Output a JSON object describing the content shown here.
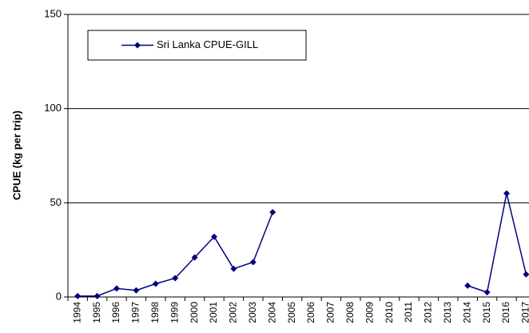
{
  "chart_data": {
    "type": "line",
    "y_label": "CPUE (kg per trip)",
    "categories": [
      "1994",
      "1995",
      "1996",
      "1997",
      "1998",
      "1999",
      "2000",
      "2001",
      "2002",
      "2003",
      "2004",
      "2005",
      "2006",
      "2007",
      "2008",
      "2009",
      "2010",
      "2011",
      "2012",
      "2013",
      "2014",
      "2015",
      "2016",
      "2017"
    ],
    "series": [
      {
        "name": "Sri Lanka CPUE-GILL",
        "color": "#000080",
        "values": [
          0.5,
          0.5,
          4.5,
          3.5,
          7,
          10,
          21,
          32,
          15,
          18.5,
          45,
          null,
          null,
          null,
          null,
          null,
          null,
          null,
          null,
          null,
          6,
          2.5,
          55,
          12
        ]
      }
    ],
    "ylim": [
      0,
      150
    ],
    "yticks": [
      0,
      50,
      100,
      150
    ],
    "grid": true,
    "legend": "upper left"
  }
}
